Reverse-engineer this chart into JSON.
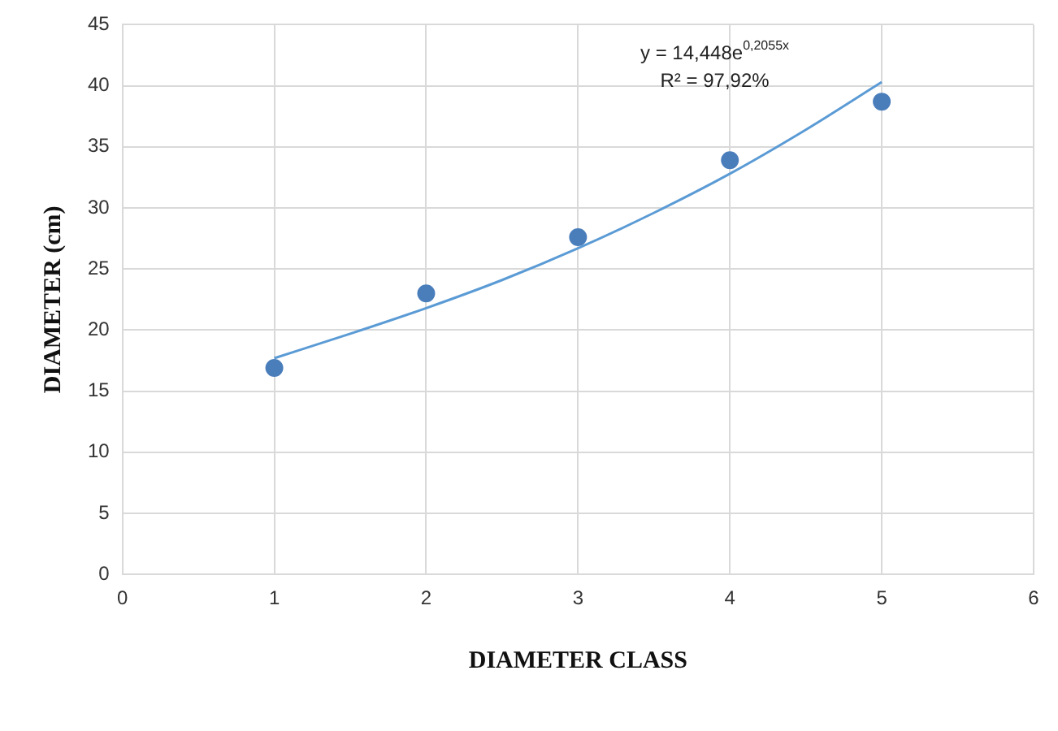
{
  "chart_data": {
    "type": "scatter",
    "xlabel": "DIAMETER CLASS",
    "ylabel": "DIAMETER (cm)",
    "x": [
      1,
      2,
      3,
      4,
      5
    ],
    "series": [
      {
        "color": "#4a7ebb",
        "marker": "circle",
        "values": [
          16.9,
          23,
          27.6,
          33.9,
          38.7
        ]
      },
      {
        "type": "line",
        "marker": "none",
        "color": "#5b9bd5",
        "x": [
          1,
          1.5,
          2,
          2.5,
          3,
          3.5,
          4,
          4.5,
          5
        ],
        "values": [
          17.7,
          19.7,
          21.8,
          24.1,
          26.7,
          29.6,
          32.8,
          36.4,
          40.3
        ]
      }
    ],
    "xlim": [
      0,
      6
    ],
    "xticks": [
      0,
      1,
      2,
      3,
      4,
      5,
      6
    ],
    "ylim": [
      0,
      45
    ],
    "yticks": [
      0,
      5,
      10,
      15,
      20,
      25,
      30,
      35,
      40,
      45
    ],
    "grid": true,
    "legend": false,
    "line_style": "solid",
    "annotations": [
      "y = 14,448e$^{0,2055x}$",
      "R² = 97,92%"
    ]
  }
}
